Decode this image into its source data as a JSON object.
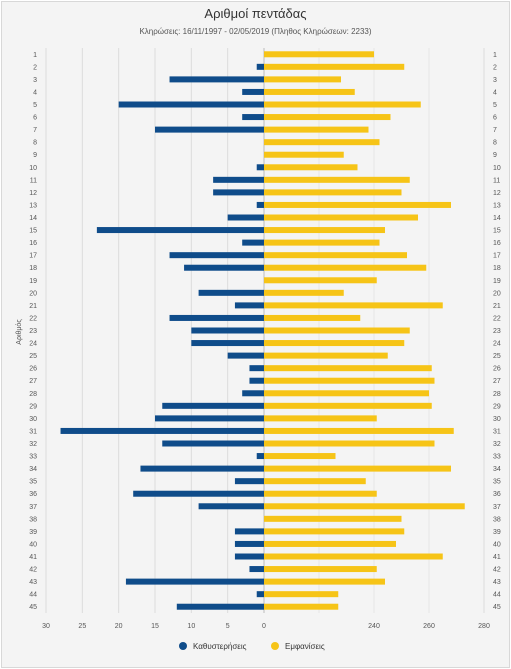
{
  "chart_data": {
    "type": "bar",
    "orientation": "horizontal",
    "title": "Αριθμοί πεντάδας",
    "subtitle": "Κληρώσεις: 16/11/1997 - 02/05/2019 (Πληθος Κληρώσεων: 2233)",
    "ylabel": "Αριθμός",
    "categories": [
      "1",
      "2",
      "3",
      "4",
      "5",
      "6",
      "7",
      "8",
      "9",
      "10",
      "11",
      "12",
      "13",
      "14",
      "15",
      "16",
      "17",
      "18",
      "19",
      "20",
      "21",
      "22",
      "23",
      "24",
      "25",
      "26",
      "27",
      "28",
      "29",
      "30",
      "31",
      "32",
      "33",
      "34",
      "35",
      "36",
      "37",
      "38",
      "39",
      "40",
      "41",
      "42",
      "43",
      "44",
      "45"
    ],
    "series": [
      {
        "name": "Καθυστερήσεις",
        "color": "#0f4c8a",
        "axis": "left",
        "xlim": [
          30,
          0
        ],
        "ticks": [
          "30",
          "25",
          "20",
          "15",
          "10",
          "5",
          "0"
        ],
        "values": [
          0,
          1,
          13,
          3,
          20,
          3,
          15,
          0,
          0,
          1,
          7,
          7,
          1,
          5,
          23,
          3,
          13,
          11,
          0,
          9,
          4,
          13,
          10,
          10,
          5,
          2,
          2,
          3,
          14,
          15,
          28,
          14,
          1,
          17,
          4,
          18,
          9,
          0,
          4,
          4,
          4,
          2,
          19,
          1,
          12
        ]
      },
      {
        "name": "Εμφανίσεις",
        "color": "#f6c417",
        "axis": "right",
        "xlim": [
          200,
          280
        ],
        "ticks": [
          "240",
          "260",
          "280"
        ],
        "values": [
          240,
          251,
          228,
          233,
          257,
          246,
          238,
          242,
          229,
          234,
          253,
          250,
          268,
          256,
          244,
          242,
          252,
          259,
          241,
          229,
          265,
          235,
          253,
          251,
          245,
          261,
          262,
          260,
          261,
          241,
          269,
          262,
          226,
          268,
          237,
          241,
          273,
          250,
          251,
          248,
          265,
          241,
          244,
          227,
          227
        ]
      }
    ],
    "legend": {
      "position": "bottom-center"
    },
    "grid": true
  }
}
